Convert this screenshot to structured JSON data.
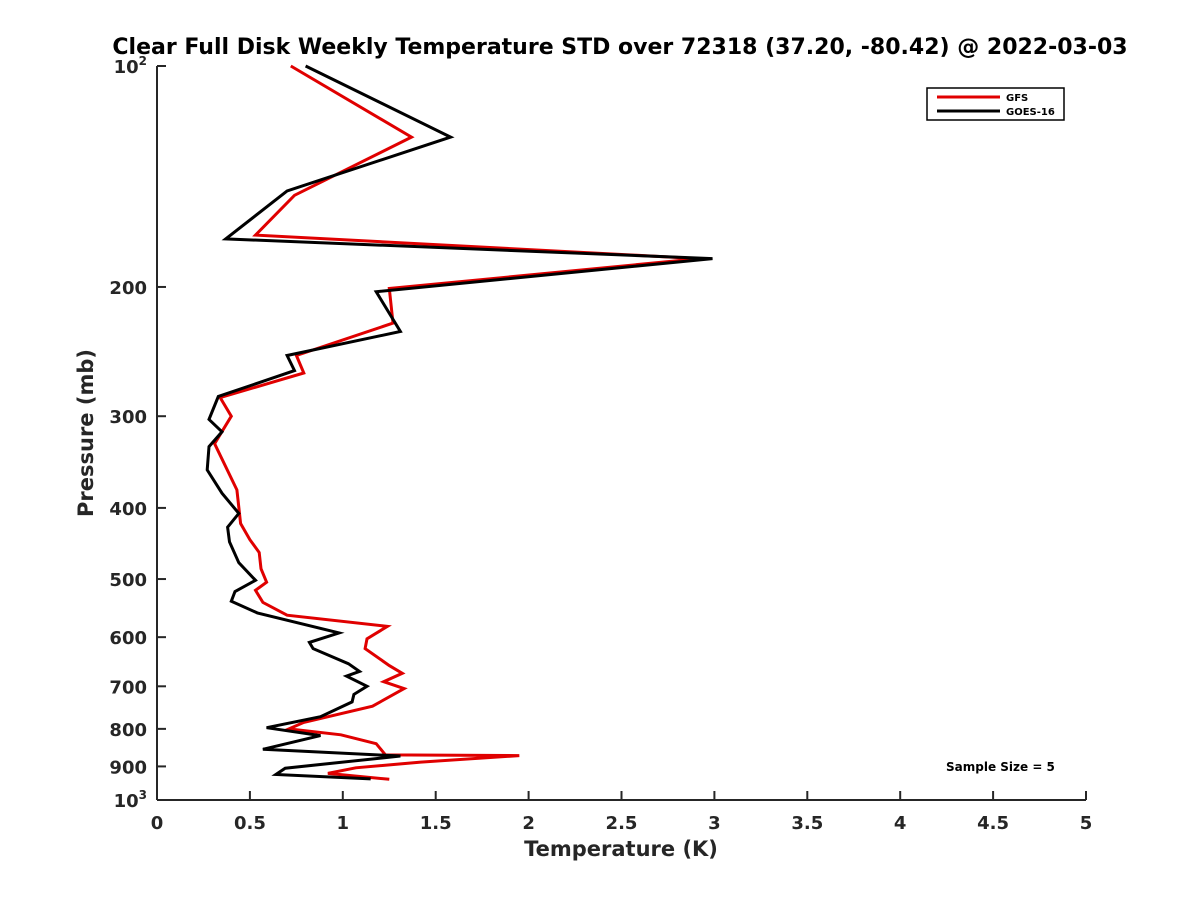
{
  "chart_data": {
    "type": "line",
    "title": "Clear Full Disk Weekly Temperature STD over 72318 (37.20, -80.42) @ 2022-03-03",
    "xlabel": "Temperature (K)",
    "ylabel": "Pressure (mb)",
    "xlim": [
      0,
      5
    ],
    "ylim": [
      100,
      1000
    ],
    "y_scale": "log",
    "y_reversed": true,
    "x_ticks": [
      0,
      0.5,
      1,
      1.5,
      2,
      2.5,
      3,
      3.5,
      4,
      4.5,
      5
    ],
    "x_tick_labels": [
      "0",
      "0.5",
      "1",
      "1.5",
      "2",
      "2.5",
      "3",
      "3.5",
      "4",
      "4.5",
      "5"
    ],
    "y_ticks": [
      100,
      200,
      300,
      400,
      500,
      600,
      700,
      800,
      900,
      1000
    ],
    "y_tick_labels": [
      {
        "base": "10",
        "sup": "2"
      },
      {
        "base": "200"
      },
      {
        "base": "300"
      },
      {
        "base": "400"
      },
      {
        "base": "500"
      },
      {
        "base": "600"
      },
      {
        "base": "700"
      },
      {
        "base": "800"
      },
      {
        "base": "900"
      },
      {
        "base": "10",
        "sup": "3"
      }
    ],
    "grid": false,
    "legend_position": "top-right",
    "annotation": "Sample Size = 5",
    "series": [
      {
        "name": "GFS",
        "color": "#e00000",
        "points": [
          [
            0.72,
            100
          ],
          [
            1.37,
            125
          ],
          [
            0.74,
            150
          ],
          [
            0.53,
            170
          ],
          [
            2.92,
            183
          ],
          [
            1.25,
            201
          ],
          [
            1.27,
            224
          ],
          [
            0.75,
            248
          ],
          [
            0.79,
            262
          ],
          [
            0.34,
            283
          ],
          [
            0.4,
            300
          ],
          [
            0.31,
            327
          ],
          [
            0.43,
            378
          ],
          [
            0.45,
            420
          ],
          [
            0.5,
            442
          ],
          [
            0.55,
            460
          ],
          [
            0.56,
            484
          ],
          [
            0.59,
            505
          ],
          [
            0.53,
            518
          ],
          [
            0.57,
            538
          ],
          [
            0.7,
            560
          ],
          [
            1.24,
            580
          ],
          [
            1.13,
            603
          ],
          [
            1.12,
            622
          ],
          [
            1.25,
            656
          ],
          [
            1.32,
            672
          ],
          [
            1.22,
            690
          ],
          [
            1.33,
            705
          ],
          [
            1.16,
            745
          ],
          [
            0.79,
            784
          ],
          [
            0.71,
            800
          ],
          [
            0.99,
            815
          ],
          [
            1.18,
            838
          ],
          [
            1.23,
            868
          ],
          [
            1.95,
            870
          ],
          [
            1.42,
            888
          ],
          [
            1.07,
            904
          ],
          [
            0.92,
            920
          ],
          [
            1.25,
            937
          ]
        ]
      },
      {
        "name": "GOES-16",
        "color": "#000000",
        "points": [
          [
            0.8,
            100
          ],
          [
            1.58,
            125
          ],
          [
            0.7,
            148
          ],
          [
            0.37,
            172
          ],
          [
            2.99,
            183
          ],
          [
            1.18,
            203
          ],
          [
            1.31,
            230
          ],
          [
            0.7,
            248
          ],
          [
            0.74,
            260
          ],
          [
            0.33,
            282
          ],
          [
            0.28,
            303
          ],
          [
            0.35,
            315
          ],
          [
            0.28,
            330
          ],
          [
            0.27,
            355
          ],
          [
            0.35,
            382
          ],
          [
            0.44,
            407
          ],
          [
            0.38,
            425
          ],
          [
            0.39,
            445
          ],
          [
            0.44,
            475
          ],
          [
            0.53,
            502
          ],
          [
            0.42,
            520
          ],
          [
            0.4,
            536
          ],
          [
            0.54,
            556
          ],
          [
            0.98,
            592
          ],
          [
            0.82,
            610
          ],
          [
            0.84,
            622
          ],
          [
            1.03,
            652
          ],
          [
            1.09,
            668
          ],
          [
            1.02,
            678
          ],
          [
            1.13,
            700
          ],
          [
            1.06,
            718
          ],
          [
            1.05,
            735
          ],
          [
            0.88,
            770
          ],
          [
            0.59,
            797
          ],
          [
            0.88,
            817
          ],
          [
            0.57,
            853
          ],
          [
            1.31,
            871
          ],
          [
            0.69,
            905
          ],
          [
            0.64,
            923
          ],
          [
            1.15,
            936
          ]
        ]
      }
    ]
  }
}
